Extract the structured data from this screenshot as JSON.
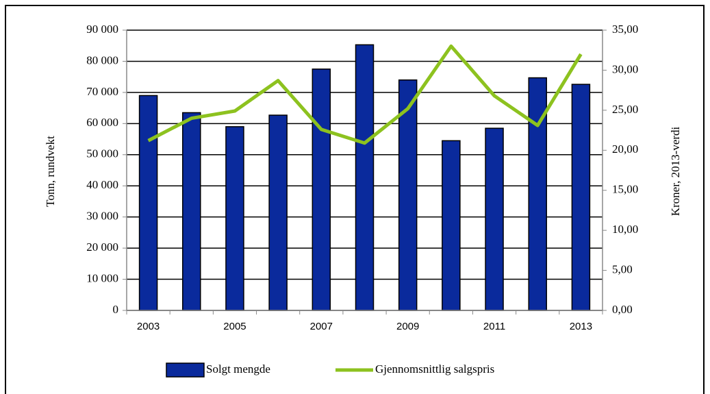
{
  "chart_data": {
    "type": "bar",
    "categories": [
      "2003",
      null,
      "2005",
      null,
      "2007",
      null,
      "2009",
      null,
      "2011",
      null,
      "2013"
    ],
    "series": [
      {
        "name": "Solgt mengde",
        "type": "bar",
        "color": "#0a2a9c",
        "values": [
          69000,
          63500,
          59000,
          62700,
          77500,
          85300,
          74000,
          54500,
          58500,
          74700,
          72600
        ]
      },
      {
        "name": "Gjennomsnittlig salgspris",
        "type": "line",
        "color": "#8dc21f",
        "axis": "y2",
        "values": [
          21.2,
          24.0,
          24.9,
          28.7,
          22.6,
          20.9,
          25.2,
          33.0,
          26.8,
          23.1,
          32.0
        ]
      }
    ],
    "ylabel": "Tonn, rundvekt",
    "y2label": "Kroner, 2013-verdi",
    "ylim": [
      0,
      90000
    ],
    "yticks": [
      0,
      {
        "value": 10000,
        "label": "10 000"
      },
      {
        "value": 20000,
        "label": "20 000"
      },
      {
        "value": 30000,
        "label": "30 000"
      },
      {
        "value": 40000,
        "label": "40 000"
      },
      {
        "value": 50000,
        "label": "50 000"
      },
      {
        "value": 60000,
        "label": "60 000"
      },
      {
        "value": 70000,
        "label": "70 000"
      },
      {
        "value": 80000,
        "label": "80 000"
      },
      {
        "value": 90000,
        "label": "90 000"
      }
    ],
    "y2lim": [
      0,
      35
    ],
    "y2ticks": [
      {
        "value": 0,
        "label": "0,00"
      },
      {
        "value": 5,
        "label": "5,00"
      },
      {
        "value": 10,
        "label": "10,00"
      },
      {
        "value": 15,
        "label": "15,00"
      },
      {
        "value": 20,
        "label": "20,00"
      },
      {
        "value": 25,
        "label": "25,00"
      },
      {
        "value": 30,
        "label": "30,00"
      },
      {
        "value": 35,
        "label": "35,00"
      }
    ],
    "grid": true,
    "legend": "bottom"
  }
}
